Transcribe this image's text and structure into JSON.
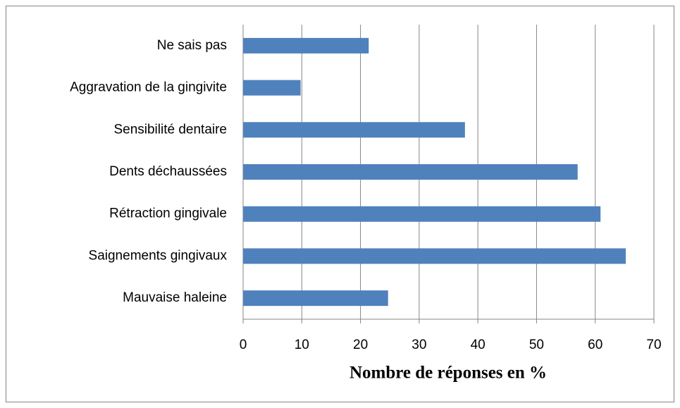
{
  "chart_data": {
    "type": "barh",
    "xlabel": "Nombre de réponses en %",
    "categories": [
      "Ne sais pas",
      "Aggravation de la gingivite",
      "Sensibilité dentaire",
      "Dents déchaussées",
      "Rétraction gingivale",
      "Saignements gingivaux",
      "Mauvaise haleine"
    ],
    "values": [
      21.4,
      9.8,
      37.8,
      57.0,
      60.9,
      65.2,
      24.7
    ],
    "color": "#4f81bd",
    "xlim": [
      0,
      70
    ],
    "xticks": [
      0,
      10,
      20,
      30,
      40,
      50,
      60,
      70
    ],
    "grid": true
  }
}
